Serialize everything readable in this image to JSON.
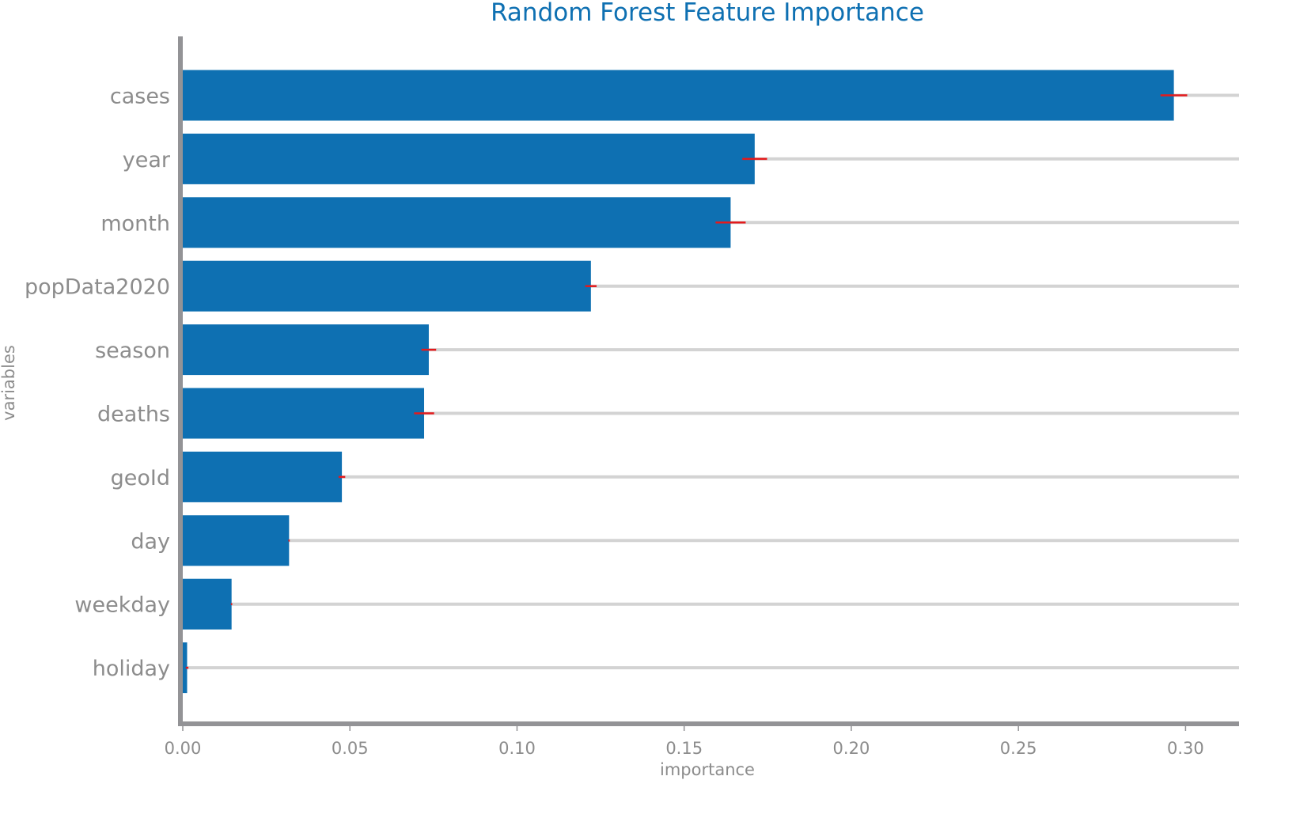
{
  "chart_data": {
    "type": "bar",
    "orientation": "horizontal",
    "title": "Random Forest Feature Importance",
    "xlabel": "importance",
    "ylabel": "variables",
    "xlim": [
      0,
      0.316
    ],
    "xticks": [
      "0.00",
      "0.05",
      "0.10",
      "0.15",
      "0.20",
      "0.25",
      "0.30"
    ],
    "categories": [
      "cases",
      "year",
      "month",
      "popData2020",
      "season",
      "deaths",
      "geoId",
      "day",
      "weekday",
      "holiday"
    ],
    "values": [
      0.2965,
      0.1711,
      0.1639,
      0.1221,
      0.0736,
      0.0722,
      0.0476,
      0.0318,
      0.0146,
      0.0013
    ],
    "errors": [
      0.004,
      0.0037,
      0.0045,
      0.0017,
      0.0022,
      0.003,
      0.001,
      0.0002,
      0.0002,
      0.0004
    ],
    "colors": {
      "bar": "#0e70b2",
      "error": "#e41a1c",
      "track": "#d3d3d3",
      "axis": "#939396",
      "title": "#0e70b2",
      "text": "#8c8c8c"
    }
  }
}
